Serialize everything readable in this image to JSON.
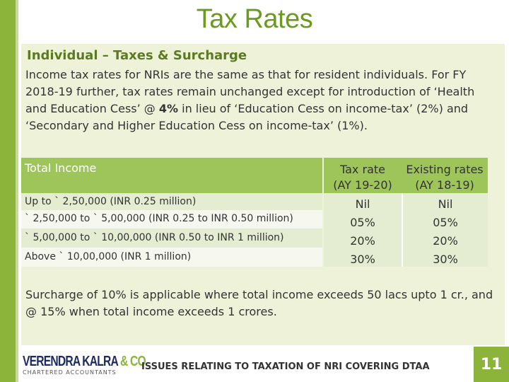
{
  "title": "Tax Rates",
  "section_heading": "Individual – Taxes & Surcharge",
  "intro": {
    "part1": "Income tax rates for NRIs are the same as that for resident individuals. For FY 2018-19 further, tax rates remain unchanged except for introduction of ‘Health and Education Cess’ @ ",
    "bold": "4%",
    "part2": " in lieu of ‘Education Cess on income-tax’ (2%) and ‘Secondary and Higher Education Cess on income-tax’ (1%)."
  },
  "table": {
    "col1_header": "Total Income",
    "col2_header_line1": "Tax rate",
    "col2_header_line2": "(AY 19-20)",
    "col3_header_line1": "Existing rates",
    "col3_header_line2": "(AY 18-19)",
    "rows": [
      {
        "income": "Up to ` 2,50,000 (INR 0.25 million)",
        "rate": "Nil",
        "existing": "Nil"
      },
      {
        "income": "` 2,50,000 to ` 5,00,000 (INR 0.25 to INR 0.50 million)",
        "rate": "05%",
        "existing": "05%"
      },
      {
        "income": "` 5,00,000 to ` 10,00,000 (INR 0.50 to INR 1 million)",
        "rate": "20%",
        "existing": "20%"
      },
      {
        "income": "Above ` 10,00,000 (INR 1 million)",
        "rate": "30%",
        "existing": "30%"
      }
    ]
  },
  "surcharge_note": "Surcharge of 10% is applicable where total income exceeds 50 lacs upto 1 cr., and @ 15% when total income exceeds 1 crores.",
  "footer": {
    "logo_name": "VERENDRA KALRA ",
    "logo_amp": "& CO",
    "logo_sub": "CHARTERED ACCOUNTANTS",
    "text": "ISSUES RELATING TO TAXATION OF NRI COVERING DTAA",
    "page_number": "11"
  }
}
